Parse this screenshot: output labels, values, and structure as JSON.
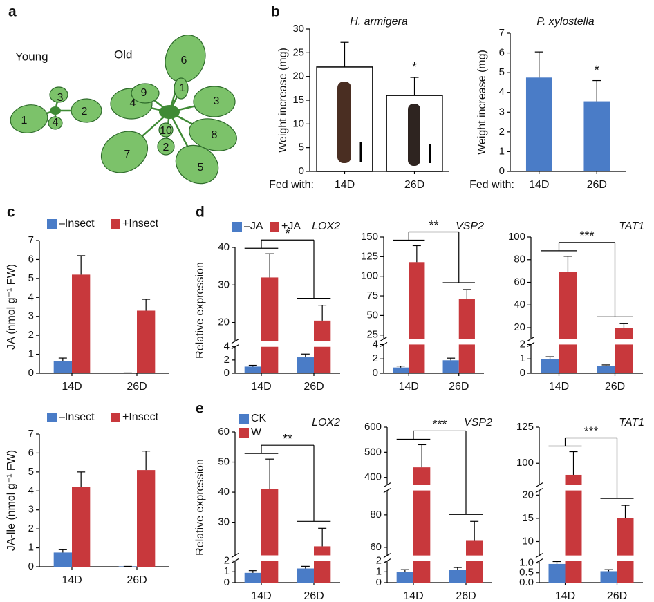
{
  "panel_labels": [
    "a",
    "b",
    "c",
    "d",
    "e"
  ],
  "illustration": {
    "young_label": "Young",
    "old_label": "Old",
    "young_leaves": [
      "1",
      "2",
      "3",
      "4"
    ],
    "old_leaves": [
      "1",
      "2",
      "3",
      "4",
      "5",
      "6",
      "7",
      "8",
      "9",
      "10"
    ]
  },
  "chart_data": [
    {
      "type": "bar",
      "title": "H. armigera",
      "ylabel": "Weight increase (mg)",
      "x_prefix": "Fed with:",
      "categories": [
        "14D",
        "26D"
      ],
      "values": [
        22,
        16
      ],
      "errors": [
        5.2,
        3.8
      ],
      "value_annotations": [
        null,
        "*"
      ],
      "color": "#ffffff",
      "edgecolor": "#000000",
      "ylim": [
        0,
        30
      ],
      "yticks": [
        0,
        5,
        10,
        15,
        20,
        25,
        30
      ]
    },
    {
      "type": "bar",
      "title": "P. xylostella",
      "ylabel": "Weight increase (mg)",
      "x_prefix": "Fed with:",
      "categories": [
        "14D",
        "26D"
      ],
      "values": [
        4.75,
        3.55
      ],
      "errors": [
        1.3,
        1.05
      ],
      "value_annotations": [
        null,
        "*"
      ],
      "color": "#4a7cc7",
      "ylim": [
        0,
        7
      ],
      "yticks": [
        0,
        1,
        2,
        3,
        4,
        5,
        6,
        7
      ]
    },
    {
      "type": "bar",
      "ylabel": "JA (nmol g⁻¹ FW)",
      "categories": [
        "14D",
        "26D"
      ],
      "series": [
        {
          "name": "–Insect",
          "color": "#4a7cc7",
          "values": [
            0.65,
            0.02
          ],
          "errors": [
            0.15,
            0
          ]
        },
        {
          "name": "+Insect",
          "color": "#c8383c",
          "values": [
            5.2,
            3.3
          ],
          "errors": [
            1.0,
            0.6
          ]
        }
      ],
      "ylim": [
        0,
        7
      ],
      "yticks": [
        0,
        1,
        2,
        3,
        4,
        5,
        6,
        7
      ]
    },
    {
      "type": "bar",
      "ylabel": "JA-lle (nmol g⁻¹ FW)",
      "categories": [
        "14D",
        "26D"
      ],
      "series": [
        {
          "name": "–Insect",
          "color": "#4a7cc7",
          "values": [
            0.75,
            0.02
          ],
          "errors": [
            0.15,
            0
          ]
        },
        {
          "name": "+Insect",
          "color": "#c8383c",
          "values": [
            4.2,
            5.1
          ],
          "errors": [
            0.8,
            1.0
          ]
        }
      ],
      "ylim": [
        0,
        7
      ],
      "yticks": [
        0,
        1,
        2,
        3,
        4,
        5,
        6,
        7
      ]
    },
    {
      "type": "bar",
      "title": "LOX2",
      "ylabel": "Relative expression",
      "categories": [
        "14D",
        "26D"
      ],
      "significance": "*",
      "series": [
        {
          "name": "–JA",
          "color": "#4a7cc7",
          "values": [
            1.0,
            2.4
          ],
          "errors": [
            0.2,
            0.5
          ]
        },
        {
          "name": "+JA",
          "color": "#c8383c",
          "values": [
            32,
            20.5
          ],
          "errors": [
            6.3,
            4.1
          ]
        }
      ],
      "axis_segments": [
        {
          "ylim": [
            0,
            4
          ],
          "yticks": [
            0,
            2,
            4
          ]
        },
        {
          "ylim": [
            15,
            40
          ],
          "yticks": [
            20,
            30,
            40
          ]
        }
      ]
    },
    {
      "type": "bar",
      "title": "VSP2",
      "categories": [
        "14D",
        "26D"
      ],
      "significance": "**",
      "series": [
        {
          "name": "–JA",
          "color": "#4a7cc7",
          "values": [
            0.8,
            1.8
          ],
          "errors": [
            0.2,
            0.3
          ]
        },
        {
          "name": "+JA",
          "color": "#c8383c",
          "values": [
            118,
            71
          ],
          "errors": [
            21,
            12
          ]
        }
      ],
      "axis_segments": [
        {
          "ylim": [
            0,
            4
          ],
          "yticks": [
            0,
            2,
            4
          ]
        },
        {
          "ylim": [
            20,
            150
          ],
          "yticks": [
            25,
            50,
            75,
            100,
            125,
            150
          ]
        }
      ]
    },
    {
      "type": "bar",
      "title": "TAT1",
      "categories": [
        "14D",
        "26D"
      ],
      "significance": "***",
      "series": [
        {
          "name": "–JA",
          "color": "#4a7cc7",
          "values": [
            1.0,
            0.5
          ],
          "errors": [
            0.15,
            0.08
          ]
        },
        {
          "name": "+JA",
          "color": "#c8383c",
          "values": [
            69,
            19.5
          ],
          "errors": [
            14,
            4
          ]
        }
      ],
      "axis_segments": [
        {
          "ylim": [
            0,
            2
          ],
          "yticks": [
            0,
            1,
            2
          ]
        },
        {
          "ylim": [
            10,
            100
          ],
          "yticks": [
            20,
            40,
            60,
            80,
            100
          ]
        }
      ]
    },
    {
      "type": "bar",
      "title": "LOX2",
      "ylabel": "Relative expression",
      "categories": [
        "14D",
        "26D"
      ],
      "significance": "**",
      "series": [
        {
          "name": "CK",
          "color": "#4a7cc7",
          "values": [
            0.9,
            1.3
          ],
          "errors": [
            0.2,
            0.2
          ]
        },
        {
          "name": "W",
          "color": "#c8383c",
          "values": [
            41,
            22
          ],
          "errors": [
            10,
            6
          ]
        }
      ],
      "axis_segments": [
        {
          "ylim": [
            0,
            2
          ],
          "yticks": [
            0,
            1,
            2
          ]
        },
        {
          "ylim": [
            19,
            60
          ],
          "yticks": [
            30,
            40,
            50,
            60
          ]
        }
      ]
    },
    {
      "type": "bar",
      "title": "VSP2",
      "categories": [
        "14D",
        "26D"
      ],
      "significance": "***",
      "series": [
        {
          "name": "CK",
          "color": "#4a7cc7",
          "values": [
            1.0,
            1.2
          ],
          "errors": [
            0.2,
            0.2
          ]
        },
        {
          "name": "W",
          "color": "#c8383c",
          "values": [
            440,
            64
          ],
          "errors": [
            90,
            12
          ]
        }
      ],
      "axis_segments": [
        {
          "ylim": [
            0,
            2
          ],
          "yticks": [
            0,
            1,
            2
          ]
        },
        {
          "ylim": [
            55,
            95
          ],
          "yticks": [
            60,
            80
          ]
        },
        {
          "ylim": [
            370,
            600
          ],
          "yticks": [
            400,
            500,
            600
          ]
        }
      ]
    },
    {
      "type": "bar",
      "title": "TAT1",
      "categories": [
        "14D",
        "26D"
      ],
      "significance": "***",
      "series": [
        {
          "name": "CK",
          "color": "#4a7cc7",
          "values": [
            0.95,
            0.58
          ],
          "errors": [
            0.12,
            0.08
          ]
        },
        {
          "name": "W",
          "color": "#c8383c",
          "values": [
            92,
            15
          ],
          "errors": [
            16,
            2.8
          ]
        }
      ],
      "axis_segments": [
        {
          "ylim": [
            0,
            1.1
          ],
          "yticks": [
            {
              "value": 0,
              "label": "0.0"
            },
            {
              "value": 0.5,
              "label": "0.5"
            },
            {
              "value": 1,
              "label": "1.0"
            }
          ]
        },
        {
          "ylim": [
            7,
            21
          ],
          "yticks": [
            10,
            15,
            20
          ]
        },
        {
          "ylim": [
            85,
            125
          ],
          "yticks": [
            100,
            125
          ]
        }
      ]
    }
  ]
}
